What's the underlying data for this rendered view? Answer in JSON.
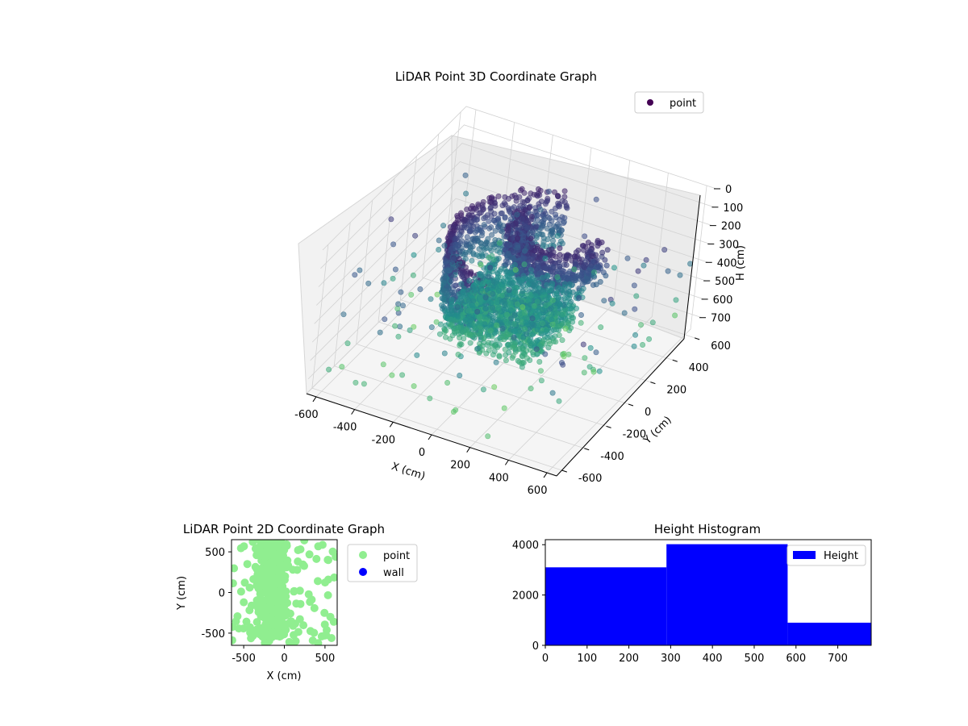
{
  "colors": {
    "point3d_dark": "#440154",
    "point3d_mid": "#3b528b",
    "point3d_teal": "#21918c",
    "point3d_light": "#5ec962",
    "point2d": "#90ee90",
    "wall": "#0000ff",
    "histogram": "#0000ff"
  },
  "chart_data": [
    {
      "type": "scatter3d",
      "title": "LiDAR Point 3D Coordinate Graph",
      "xlabel": "X (cm)",
      "ylabel": "Y (cm)",
      "zlabel": "H (cm)",
      "xlim": [
        -650,
        650
      ],
      "ylim": [
        -650,
        650
      ],
      "zlim": [
        780,
        0
      ],
      "z_inverted": true,
      "xticks": [
        "-600",
        "-400",
        "-200",
        "0",
        "200",
        "400",
        "600"
      ],
      "yticks": [
        "-600",
        "-400",
        "-200",
        "0",
        "200",
        "400",
        "600"
      ],
      "zticks": [
        "0",
        "100",
        "200",
        "300",
        "400",
        "500",
        "600",
        "700"
      ],
      "legend": {
        "entries": [
          "point"
        ],
        "placement": "upper right"
      },
      "grid": true,
      "colormap": "viridis"
    },
    {
      "type": "scatter",
      "title": "LiDAR Point 2D Coordinate Graph",
      "xlabel": "X (cm)",
      "ylabel": "Y (cm)",
      "xlim": [
        -650,
        650
      ],
      "ylim": [
        -650,
        650
      ],
      "xticks": [
        "-500",
        "0",
        "500"
      ],
      "yticks": [
        "500",
        "0",
        "-500"
      ],
      "series": [
        {
          "name": "point",
          "color": "#90ee90"
        },
        {
          "name": "wall",
          "color": "#0000ff"
        }
      ],
      "legend": {
        "entries": [
          "point",
          "wall"
        ],
        "placement": "outside right"
      }
    },
    {
      "type": "bar",
      "title": "Height Histogram",
      "xlabel": "",
      "ylabel": "",
      "xlim": [
        0,
        780
      ],
      "ylim": [
        0,
        4200
      ],
      "xticks": [
        "0",
        "100",
        "200",
        "300",
        "400",
        "500",
        "600",
        "700"
      ],
      "yticks": [
        "0",
        "2000",
        "4000"
      ],
      "bins": [
        [
          0,
          290
        ],
        [
          290,
          580
        ],
        [
          580,
          780
        ]
      ],
      "values": [
        3100,
        4020,
        900
      ],
      "series": [
        {
          "name": "Height",
          "color": "#0000ff"
        }
      ],
      "legend": {
        "entries": [
          "Height"
        ],
        "placement": "upper right"
      }
    }
  ]
}
